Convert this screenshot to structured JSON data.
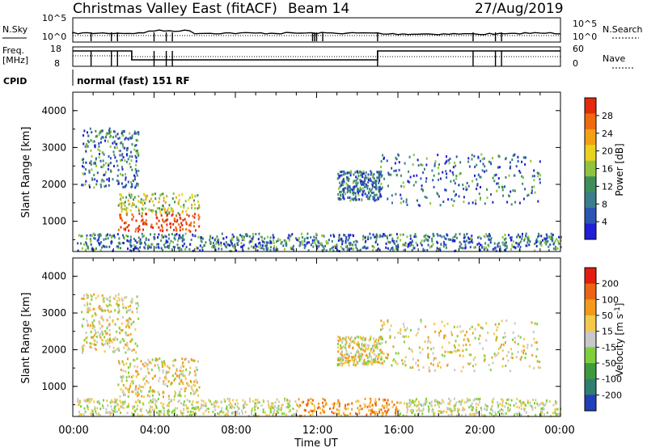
{
  "header": {
    "title": "Christmas Valley East (fitACF)",
    "beam": "Beam 14",
    "date": "27/Aug/2019"
  },
  "status_panels": {
    "nsky_label": "N.Sky",
    "nsearch_label": "N.Search",
    "noise_ticks": [
      "10^5",
      "10^0"
    ],
    "freq_label_line1": "Freq.",
    "freq_label_line2": "[MHz]",
    "freq_ticks": [
      "18",
      "8"
    ],
    "nave_label": "Nave",
    "nave_ticks": [
      "60",
      "0"
    ],
    "cpid_label": "CPID",
    "cpid_value": "normal (fast) 151 RF"
  },
  "x_axis": {
    "label": "Time UT",
    "ticks": [
      "00:00",
      "04:00",
      "08:00",
      "12:00",
      "16:00",
      "20:00",
      "00:00"
    ],
    "range_hours": [
      0,
      24
    ]
  },
  "chart_data": [
    {
      "type": "heatmap",
      "panel": "power",
      "ylabel": "Slant Range [km]",
      "yticks": [
        "4000",
        "3000",
        "2000",
        "1000"
      ],
      "ylim": [
        180,
        4500
      ],
      "colorbar_label": "Power [dB]",
      "colorbar_ticks": [
        "28",
        "24",
        "20",
        "16",
        "12",
        "8",
        "4"
      ],
      "colors": [
        "#1f1fd6",
        "#2b55b4",
        "#3a7d8c",
        "#3e8f5a",
        "#8fc43e",
        "#e8d21e",
        "#f3a012",
        "#ef6a0e",
        "#e22a0c"
      ],
      "scatter_regions": [
        {
          "t0": 0.2,
          "t1": 24,
          "r0": 180,
          "r1": 650
        },
        {
          "t0": 2.2,
          "t1": 6.2,
          "r0": 700,
          "r1": 1750
        },
        {
          "t0": 0.4,
          "t1": 3.2,
          "r0": 1900,
          "r1": 3500
        },
        {
          "t0": 13,
          "t1": 15.2,
          "r0": 1550,
          "r1": 2350
        },
        {
          "t0": 15,
          "t1": 23,
          "r0": 1400,
          "r1": 2800
        }
      ]
    },
    {
      "type": "heatmap",
      "panel": "velocity",
      "ylabel": "Slant Range [km]",
      "yticks": [
        "4000",
        "3000",
        "2000",
        "1000"
      ],
      "ylim": [
        180,
        4500
      ],
      "colorbar_label": "Velocity [m s^-1]",
      "colorbar_ticks": [
        "200",
        "100",
        "50",
        "15",
        "-15",
        "-50",
        "-100",
        "-200"
      ],
      "colors": [
        "#2040b8",
        "#2f7f70",
        "#3f9a3e",
        "#7fcf3c",
        "#c8c8c8",
        "#f2c94c",
        "#f39a1c",
        "#ec6414",
        "#e21c10"
      ],
      "scatter_regions": [
        {
          "t0": 0.2,
          "t1": 24,
          "r0": 180,
          "r1": 650
        },
        {
          "t0": 2.2,
          "t1": 6.2,
          "r0": 700,
          "r1": 1750
        },
        {
          "t0": 0.4,
          "t1": 3.2,
          "r0": 1900,
          "r1": 3500
        },
        {
          "t0": 13,
          "t1": 15.2,
          "r0": 1550,
          "r1": 2350
        },
        {
          "t0": 15,
          "t1": 23,
          "r0": 1400,
          "r1": 2800
        }
      ]
    }
  ]
}
